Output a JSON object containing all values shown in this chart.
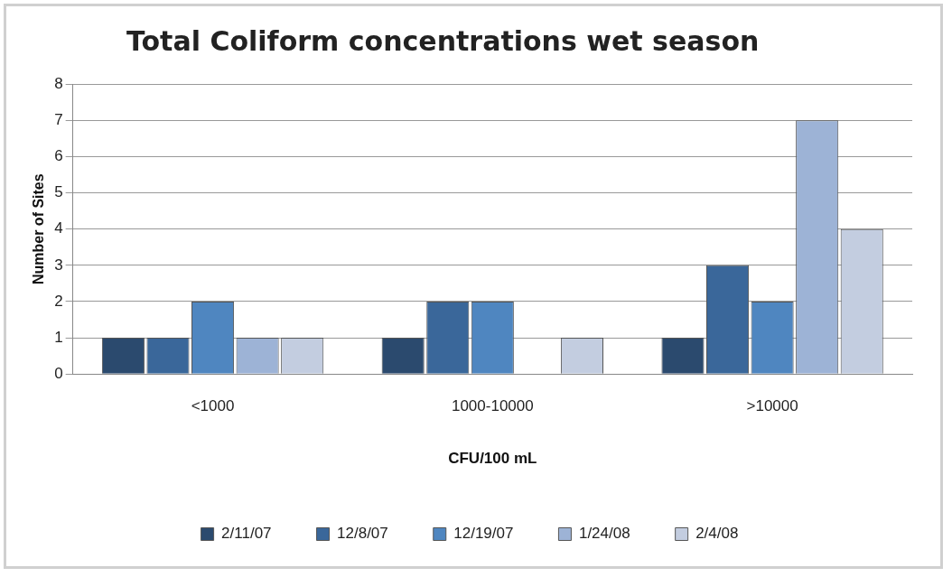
{
  "chart_data": {
    "type": "bar",
    "title": "Total Coliform concentrations wet season",
    "xlabel": "CFU/100 mL",
    "ylabel": "Number of Sites",
    "categories": [
      "<1000",
      "1000-10000",
      ">10000"
    ],
    "series": [
      {
        "name": "2/11/07",
        "color": "#2b4a6e",
        "values": [
          1,
          1,
          1
        ]
      },
      {
        "name": "12/8/07",
        "color": "#3a679a",
        "values": [
          1,
          2,
          3
        ]
      },
      {
        "name": "12/19/07",
        "color": "#4f86c0",
        "values": [
          2,
          2,
          2
        ]
      },
      {
        "name": "1/24/08",
        "color": "#9db3d6",
        "values": [
          1,
          0,
          7
        ]
      },
      {
        "name": "2/4/08",
        "color": "#c3cde0",
        "values": [
          1,
          1,
          4
        ]
      }
    ],
    "ylim": [
      0,
      8
    ],
    "yticks": [
      0,
      1,
      2,
      3,
      4,
      5,
      6,
      7,
      8
    ],
    "grid": "y",
    "legend": "bottom"
  }
}
